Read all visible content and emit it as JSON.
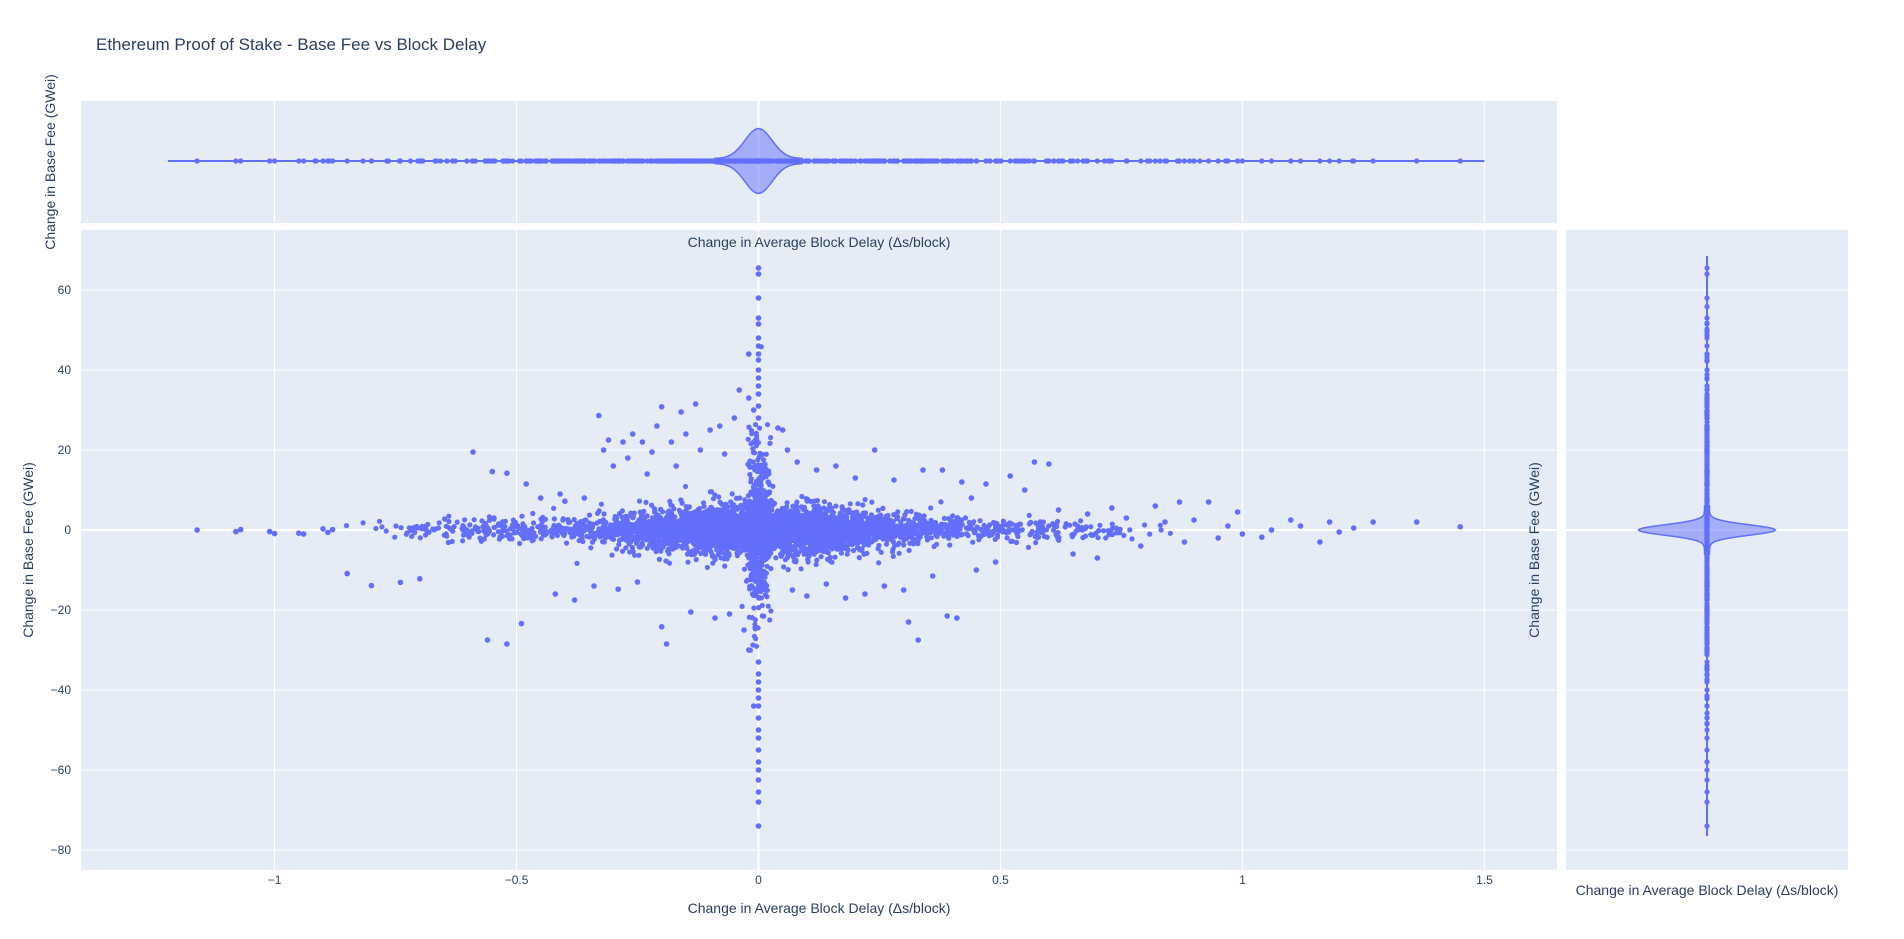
{
  "chart_data": {
    "type": "scatter",
    "title": "Ethereum Proof of Stake - Base Fee vs Block Delay",
    "xlabel": "Change in Average Block Delay (Δs/block)",
    "ylabel": "Change in Base Fee (GWei)",
    "xlim": [
      -1.4,
      1.65
    ],
    "ylim": [
      -85,
      75
    ],
    "xticks": [
      -1,
      -0.5,
      0,
      0.5,
      1,
      1.5
    ],
    "xtick_labels": [
      "−1",
      "−0.5",
      "0",
      "0.5",
      "1",
      "1.5"
    ],
    "yticks": [
      -80,
      -60,
      -40,
      -20,
      0,
      20,
      40,
      60
    ],
    "ytick_labels": [
      "−80",
      "−60",
      "−40",
      "−20",
      "0",
      "20",
      "40",
      "60"
    ],
    "grid": true,
    "marker_color": "#636efa",
    "background_color": "#e5ecf6",
    "series": [
      {
        "points": [
          [
            -1.16,
            0.0
          ],
          [
            -1.08,
            -0.4
          ],
          [
            -1.07,
            0.1
          ],
          [
            -1.01,
            -0.4
          ],
          [
            -1.0,
            -0.9
          ],
          [
            -0.95,
            -0.8
          ],
          [
            -0.94,
            -1.0
          ],
          [
            -0.9,
            0.3
          ],
          [
            -0.89,
            -0.6
          ],
          [
            -0.88,
            0.1
          ],
          [
            -0.85,
            -10.9
          ],
          [
            -0.8,
            -13.9
          ],
          [
            -0.74,
            -13.1
          ],
          [
            -0.7,
            -12.2
          ],
          [
            -0.59,
            19.5
          ],
          [
            -0.56,
            -27.5
          ],
          [
            -0.55,
            14.6
          ],
          [
            -0.52,
            -28.5
          ],
          [
            -0.52,
            14.2
          ],
          [
            -0.49,
            -23.4
          ],
          [
            -0.48,
            11.5
          ],
          [
            -0.45,
            8.0
          ],
          [
            -0.42,
            -16.0
          ],
          [
            -0.41,
            9.0
          ],
          [
            -0.4,
            7.2
          ],
          [
            -0.38,
            -17.5
          ],
          [
            -0.36,
            8.0
          ],
          [
            -0.34,
            -14.0
          ],
          [
            -0.33,
            28.6
          ],
          [
            -0.32,
            20.0
          ],
          [
            -0.31,
            22.5
          ],
          [
            -0.3,
            16.0
          ],
          [
            -0.29,
            -14.8
          ],
          [
            -0.28,
            22.0
          ],
          [
            -0.27,
            18.0
          ],
          [
            -0.26,
            24.0
          ],
          [
            -0.25,
            -13.0
          ],
          [
            -0.24,
            22.0
          ],
          [
            -0.23,
            14.0
          ],
          [
            -0.22,
            19.5
          ],
          [
            -0.21,
            26.0
          ],
          [
            -0.2,
            30.8
          ],
          [
            -0.2,
            -24.2
          ],
          [
            -0.19,
            -28.5
          ],
          [
            -0.18,
            22.0
          ],
          [
            -0.17,
            16.0
          ],
          [
            -0.16,
            29.5
          ],
          [
            -0.15,
            24.0
          ],
          [
            -0.14,
            -20.5
          ],
          [
            -0.13,
            31.5
          ],
          [
            -0.12,
            20.0
          ],
          [
            -0.1,
            25.0
          ],
          [
            -0.09,
            -22.0
          ],
          [
            -0.08,
            26.0
          ],
          [
            -0.07,
            19.0
          ],
          [
            -0.06,
            -21.0
          ],
          [
            -0.05,
            28.0
          ],
          [
            -0.04,
            35.0
          ],
          [
            -0.03,
            -25.0
          ],
          [
            -0.02,
            33.0
          ],
          [
            -0.01,
            22.0
          ],
          [
            0.01,
            15.0
          ],
          [
            0.02,
            12.0
          ],
          [
            0.04,
            25.5
          ],
          [
            0.05,
            25.0
          ],
          [
            0.06,
            20.0
          ],
          [
            0.07,
            -15.0
          ],
          [
            0.08,
            17.0
          ],
          [
            0.1,
            -16.5
          ],
          [
            0.12,
            15.0
          ],
          [
            0.14,
            -13.5
          ],
          [
            0.16,
            16.0
          ],
          [
            0.18,
            -17.0
          ],
          [
            0.2,
            13.0
          ],
          [
            0.22,
            -16.0
          ],
          [
            0.24,
            20.0
          ],
          [
            0.26,
            -14.0
          ],
          [
            0.28,
            12.5
          ],
          [
            0.3,
            -15.0
          ],
          [
            0.31,
            -23.0
          ],
          [
            0.33,
            -27.5
          ],
          [
            0.34,
            15.0
          ],
          [
            0.36,
            -11.5
          ],
          [
            0.38,
            15.0
          ],
          [
            0.39,
            -21.5
          ],
          [
            0.41,
            -22.0
          ],
          [
            0.42,
            12.0
          ],
          [
            0.44,
            8.0
          ],
          [
            0.45,
            -10.0
          ],
          [
            0.47,
            11.5
          ],
          [
            0.49,
            -8.0
          ],
          [
            0.52,
            13.5
          ],
          [
            0.55,
            10.0
          ],
          [
            0.57,
            17.0
          ],
          [
            0.6,
            16.5
          ],
          [
            0.62,
            5.0
          ],
          [
            0.65,
            -6.0
          ],
          [
            0.68,
            4.0
          ],
          [
            0.7,
            -7.0
          ],
          [
            0.73,
            5.5
          ],
          [
            0.76,
            3.0
          ],
          [
            0.79,
            -4.0
          ],
          [
            0.82,
            6.0
          ],
          [
            0.84,
            2.0
          ],
          [
            0.87,
            7.0
          ],
          [
            0.88,
            -3.0
          ],
          [
            0.9,
            2.5
          ],
          [
            0.93,
            7.0
          ],
          [
            0.95,
            -2.0
          ],
          [
            0.97,
            1.0
          ],
          [
            0.99,
            4.5
          ],
          [
            1.0,
            -1.0
          ],
          [
            1.04,
            -1.8
          ],
          [
            1.06,
            0.0
          ],
          [
            1.1,
            2.5
          ],
          [
            1.12,
            1.0
          ],
          [
            1.16,
            -3.0
          ],
          [
            1.18,
            2.0
          ],
          [
            1.2,
            -0.5
          ],
          [
            1.23,
            0.5
          ],
          [
            1.27,
            2.0
          ],
          [
            1.36,
            2.0
          ],
          [
            1.45,
            0.8
          ],
          [
            0.0,
            65.5
          ],
          [
            0.0,
            64.0
          ],
          [
            0.0,
            58.0
          ],
          [
            0.0,
            53.0
          ],
          [
            0.0,
            51.5
          ],
          [
            0.0,
            48.0
          ],
          [
            0.0,
            46.0
          ],
          [
            0.0,
            44.0
          ],
          [
            0.0,
            42.5
          ],
          [
            0.0,
            40.0
          ],
          [
            0.0,
            38.0
          ],
          [
            0.0,
            36.0
          ],
          [
            0.0,
            34.0
          ],
          [
            0.0,
            31.0
          ],
          [
            0.0,
            28.0
          ],
          [
            0.0,
            -33.0
          ],
          [
            0.0,
            -36.0
          ],
          [
            0.0,
            -38.0
          ],
          [
            0.0,
            -40.0
          ],
          [
            0.0,
            -42.0
          ],
          [
            0.0,
            -44.0
          ],
          [
            0.0,
            -47.0
          ],
          [
            0.0,
            -50.0
          ],
          [
            0.0,
            -52.0
          ],
          [
            0.0,
            -55.0
          ],
          [
            0.0,
            -58.0
          ],
          [
            0.0,
            -60.0
          ],
          [
            0.0,
            -62.5
          ],
          [
            0.0,
            -65.5
          ],
          [
            0.0,
            -68.0
          ],
          [
            0.0,
            -74.0
          ],
          [
            -0.01,
            -44.0
          ],
          [
            -0.02,
            44.0
          ],
          [
            -0.01,
            30.0
          ],
          [
            -0.02,
            -30.0
          ]
        ]
      }
    ],
    "marginal_x": {
      "type": "violin",
      "x_range": [
        -1.22,
        1.5
      ]
    },
    "marginal_y": {
      "type": "violin",
      "y_range": [
        -76.5,
        68.5
      ]
    }
  }
}
